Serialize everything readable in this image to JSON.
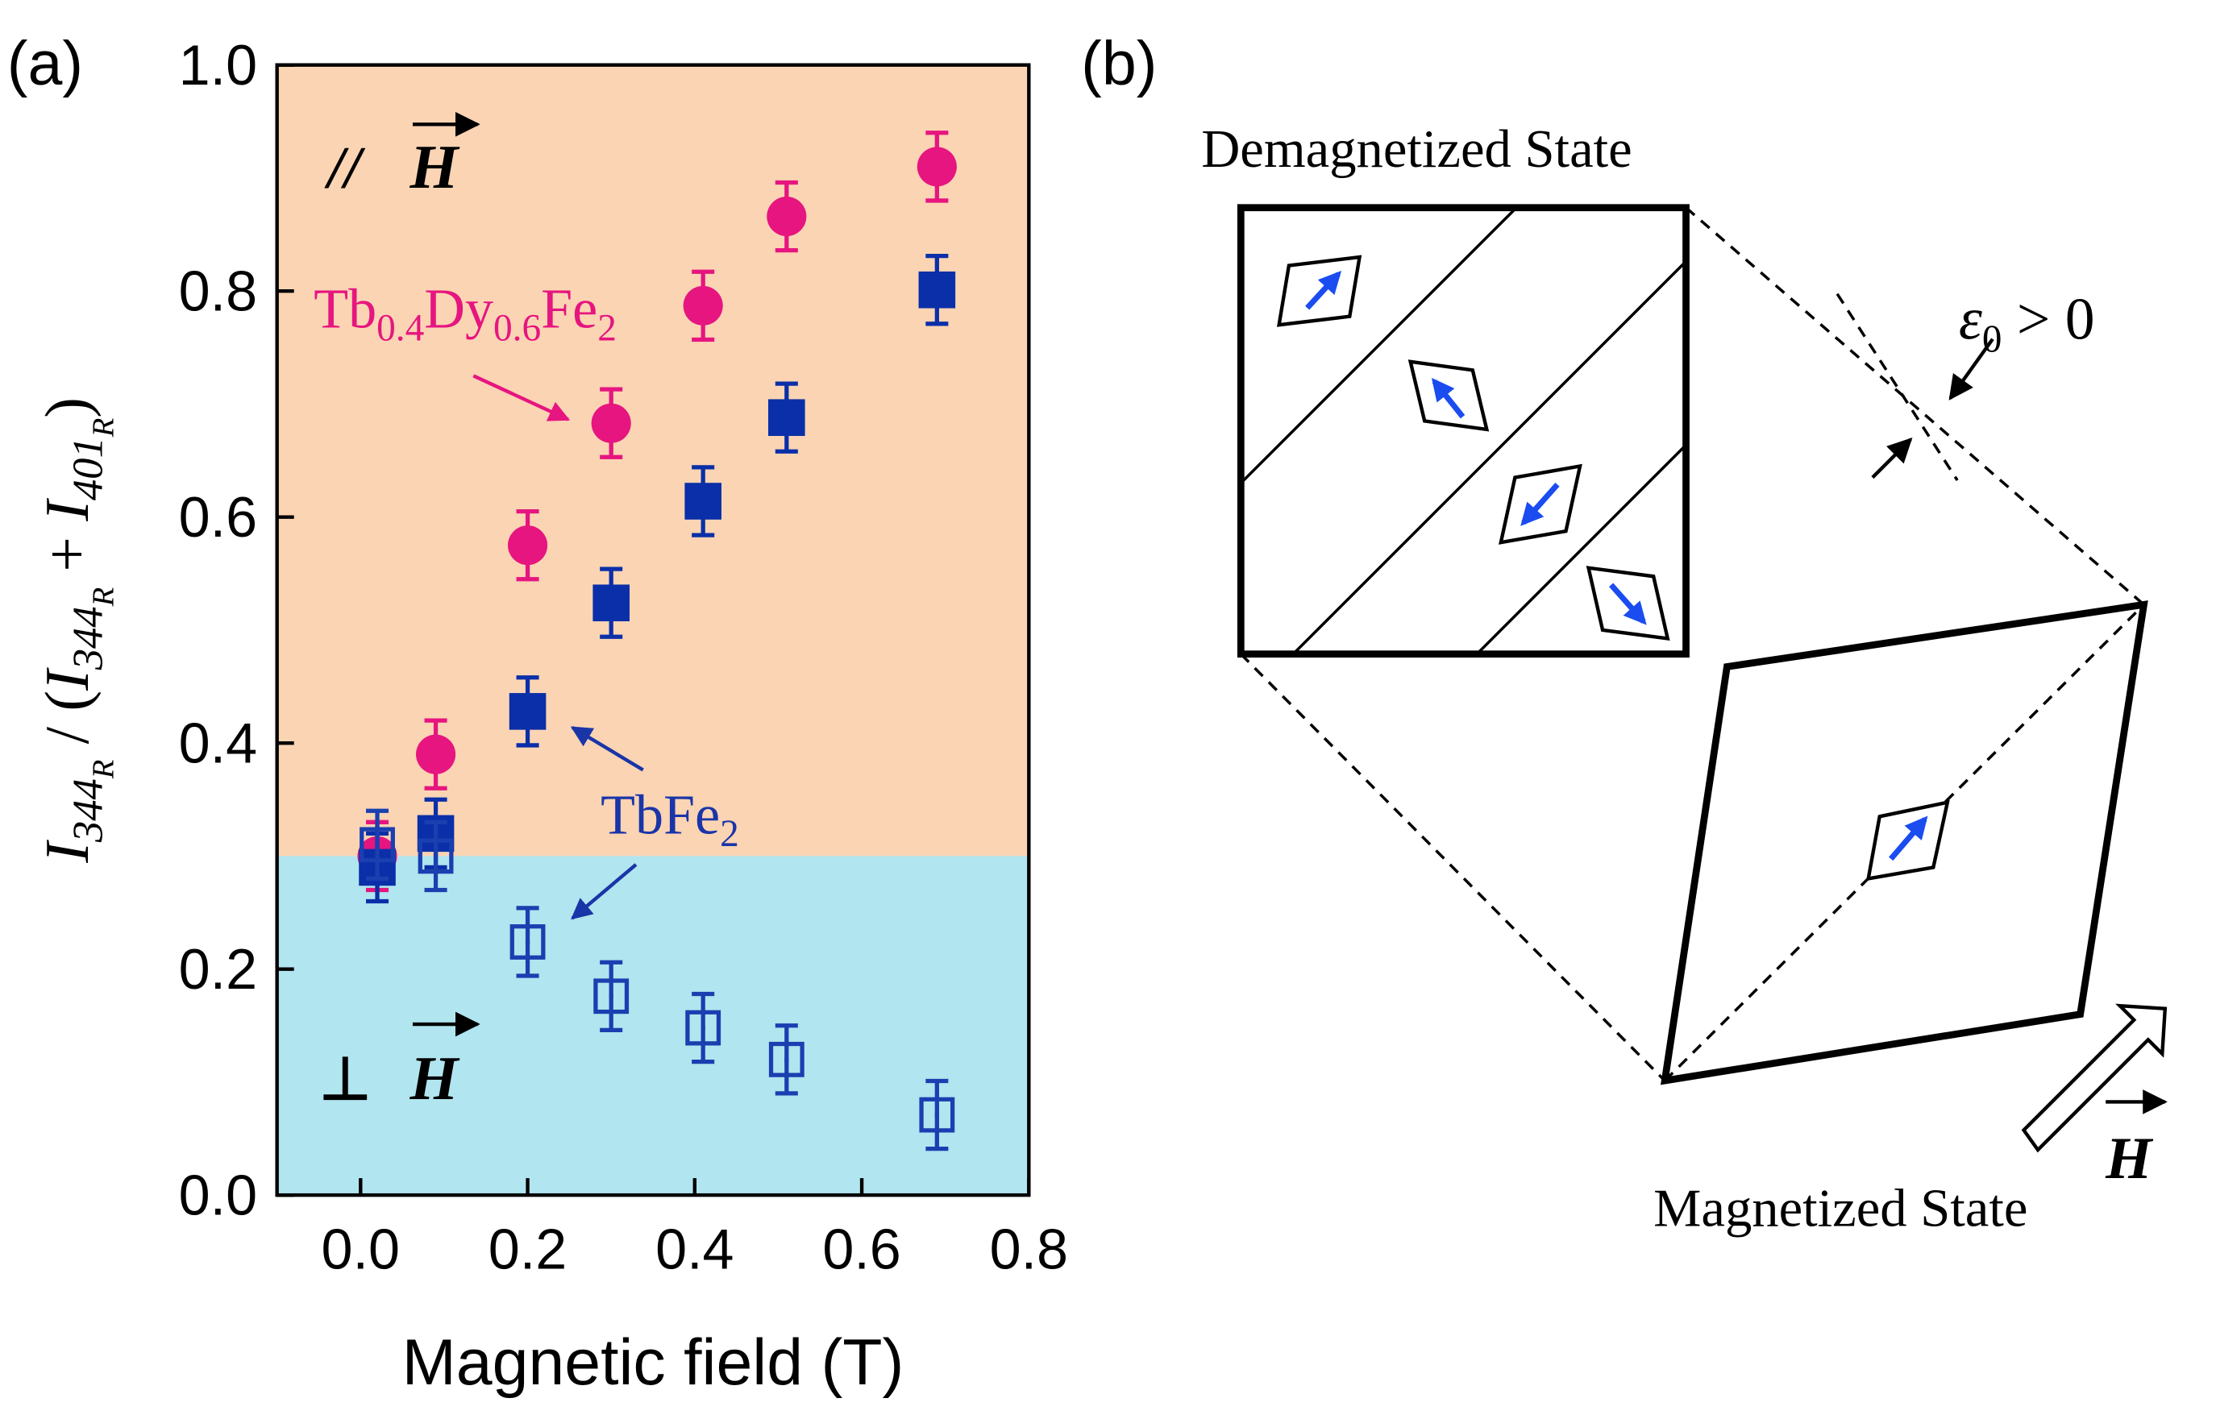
{
  "panel_labels": [
    "(a)",
    "(b)"
  ],
  "chart_data": {
    "type": "scatter",
    "xlabel": "Magnetic field (T)",
    "ylabel_parts": [
      "I",
      "344",
      "R",
      " / (",
      "I",
      "344",
      "R",
      " + ",
      "I",
      "401",
      "R",
      ")"
    ],
    "xlim": [
      -0.1,
      0.8
    ],
    "xticks": [
      {
        "value": 0,
        "label": "0.0"
      },
      0.2,
      0.4,
      0.6,
      0.8
    ],
    "ylim": [
      0,
      1
    ],
    "yticks": [
      {
        "value": 0,
        "label": "0.0"
      },
      0.2,
      0.4,
      0.6,
      0.8,
      {
        "value": 1,
        "label": "1.0"
      }
    ],
    "regions": [
      {
        "from": 0.3,
        "to": 1,
        "color": "#fbd4b4"
      },
      {
        "from": 0,
        "to": 0.3,
        "color": "#b1e5ef"
      }
    ],
    "region_labels": [
      "//",
      "⊥"
    ],
    "field_symbol": "H",
    "annotations": [
      {
        "parts": [
          "Tb",
          "0.4",
          "Dy",
          "0.6",
          "Fe",
          "2"
        ],
        "color": "#e6157f"
      },
      {
        "parts": [
          "TbFe",
          "2"
        ],
        "color": "#1a35a8"
      }
    ],
    "x": [
      0.02,
      0.09,
      0.2,
      0.3,
      0.41,
      0.51,
      0.69
    ],
    "series": [
      {
        "color": "#e6157f",
        "marker": "circle",
        "values": [
          0.3,
          0.39,
          0.575,
          0.683,
          0.787,
          0.866,
          0.91
        ],
        "errors": [
          0.03,
          0.03,
          0.03,
          0.03,
          0.03,
          0.03,
          0.03
        ]
      },
      {
        "color": "#0a2fa8",
        "marker": "square",
        "values": [
          0.29,
          0.32,
          0.428,
          0.524,
          0.614,
          0.688,
          0.801
        ],
        "errors": [
          0.03,
          0.03,
          0.03,
          0.03,
          0.03,
          0.03,
          0.03
        ]
      },
      {
        "color": "#1a3fb0",
        "marker": "open-square",
        "values": [
          0.31,
          0.3,
          0.224,
          0.176,
          0.148,
          0.12,
          0.071
        ],
        "errors": [
          0.03,
          0.03,
          0.03,
          0.03,
          0.03,
          0.03,
          0.03
        ]
      }
    ]
  },
  "diagram": {
    "demagnetized_label": "Demagnetized State",
    "magnetized_label": "Magnetized State",
    "strain_parts": [
      "ε",
      "0",
      " > 0"
    ],
    "field_symbol": "H"
  }
}
